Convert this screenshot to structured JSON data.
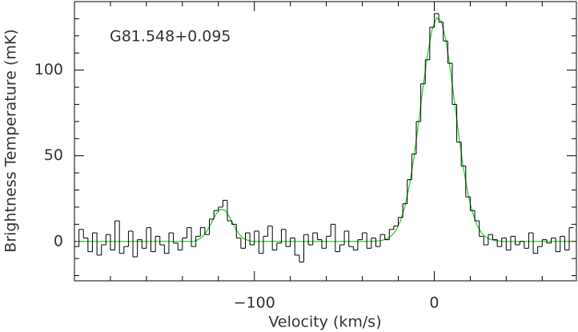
{
  "chart_data": {
    "type": "step",
    "annotation": "G81.548+0.095",
    "xlabel": "Velocity (km/s)",
    "ylabel": "Brightness Temperature (mK)",
    "xlim": [
      -200,
      79
    ],
    "ylim": [
      -23,
      140
    ],
    "xticks": [
      {
        "value": -100,
        "label": "−100"
      },
      0
    ],
    "yticks": [
      0,
      50,
      100
    ],
    "xminorticks": [
      -180,
      -160,
      -140,
      -120,
      -80,
      -60,
      -40,
      -20,
      20,
      40,
      60
    ],
    "yminorticks": [
      -20,
      -10,
      10,
      20,
      30,
      40,
      60,
      70,
      80,
      90,
      110,
      120,
      130
    ],
    "x": [
      -198.75,
      -196.25,
      -193.75,
      -191.25,
      -188.75,
      -186.25,
      -183.75,
      -181.25,
      -178.75,
      -176.25,
      -173.75,
      -171.25,
      -168.75,
      -166.25,
      -163.75,
      -161.25,
      -158.75,
      -156.25,
      -153.75,
      -151.25,
      -148.75,
      -146.25,
      -143.75,
      -141.25,
      -138.75,
      -136.25,
      -133.75,
      -131.25,
      -128.75,
      -126.25,
      -123.75,
      -121.25,
      -118.75,
      -116.25,
      -113.75,
      -111.25,
      -108.75,
      -106.25,
      -103.75,
      -101.25,
      -98.75,
      -96.25,
      -93.75,
      -91.25,
      -88.75,
      -86.25,
      -83.75,
      -81.25,
      -78.75,
      -76.25,
      -73.75,
      -71.25,
      -68.75,
      -66.25,
      -63.75,
      -61.25,
      -58.75,
      -56.25,
      -53.75,
      -51.25,
      -48.75,
      -46.25,
      -43.75,
      -41.25,
      -38.75,
      -36.25,
      -33.75,
      -31.25,
      -28.75,
      -26.25,
      -23.75,
      -21.25,
      -18.75,
      -16.25,
      -13.75,
      -11.25,
      -8.75,
      -6.25,
      -3.75,
      -1.25,
      1.25,
      3.75,
      6.25,
      8.75,
      11.25,
      13.75,
      16.25,
      18.75,
      21.25,
      23.75,
      26.25,
      28.75,
      31.25,
      33.75,
      36.25,
      38.75,
      41.25,
      43.75,
      46.25,
      48.75,
      51.25,
      53.75,
      56.25,
      58.75,
      61.25,
      63.75,
      66.25,
      68.75,
      71.25,
      73.75,
      76.25
    ],
    "series": [
      {
        "color": "#000000",
        "step": true,
        "values": [
          -3,
          7,
          2,
          -6,
          5,
          -8,
          -2,
          4,
          -5,
          12,
          -7,
          -3,
          6,
          -9,
          1,
          -4,
          8,
          -6,
          3,
          -2,
          -7,
          5,
          -1,
          -5,
          2,
          8,
          -3,
          3,
          8,
          4,
          13,
          18,
          20,
          24,
          12,
          10,
          2,
          -4,
          5,
          -2,
          6,
          -7,
          3,
          9,
          -5,
          -1,
          7,
          -3,
          2,
          -8,
          -12,
          4,
          -2,
          5,
          1,
          -4,
          3,
          10,
          -6,
          -2,
          6,
          -3,
          -5,
          1,
          5,
          -4,
          2,
          -3,
          4,
          1,
          7,
          9,
          14,
          22,
          36,
          51,
          70,
          92,
          106,
          125,
          133,
          128,
          117,
          104,
          80,
          58,
          44,
          26,
          18,
          12,
          3,
          -2,
          4,
          1,
          -3,
          2,
          -5,
          3,
          -2,
          0,
          -4,
          5,
          -7,
          -3,
          1,
          -1,
          2,
          -6,
          3,
          -5,
          8
        ]
      },
      {
        "color": "#33cc33",
        "step": false,
        "values": [
          0,
          0,
          0,
          0,
          0,
          0,
          0,
          0,
          0,
          0,
          0,
          0,
          0,
          0,
          0,
          0,
          0,
          0,
          0,
          0,
          0,
          0,
          0,
          0,
          0,
          0,
          0,
          1.0,
          2.8,
          6.2,
          11.0,
          16.0,
          18.8,
          18.1,
          14.1,
          8.9,
          4.6,
          1.9,
          0.7,
          0,
          0,
          0,
          0,
          0,
          0,
          0,
          0,
          0,
          0,
          0,
          0,
          0,
          0,
          0,
          0,
          0,
          0,
          0,
          0,
          0,
          0,
          0,
          0,
          0,
          0,
          0,
          0.1,
          0.3,
          0.7,
          1.6,
          3.3,
          6.6,
          12.1,
          20.7,
          33.1,
          49.5,
          69.1,
          89.9,
          109.1,
          123.5,
          130.6,
          128.8,
          118.6,
          101.8,
          81.5,
          60.9,
          42.5,
          27.7,
          16.8,
          9.5,
          5.0,
          2.5,
          1.1,
          0.5,
          0.2,
          0,
          0,
          0,
          0,
          0,
          0,
          0,
          0,
          0,
          0,
          0,
          0,
          0,
          0,
          0,
          0
        ]
      }
    ]
  }
}
